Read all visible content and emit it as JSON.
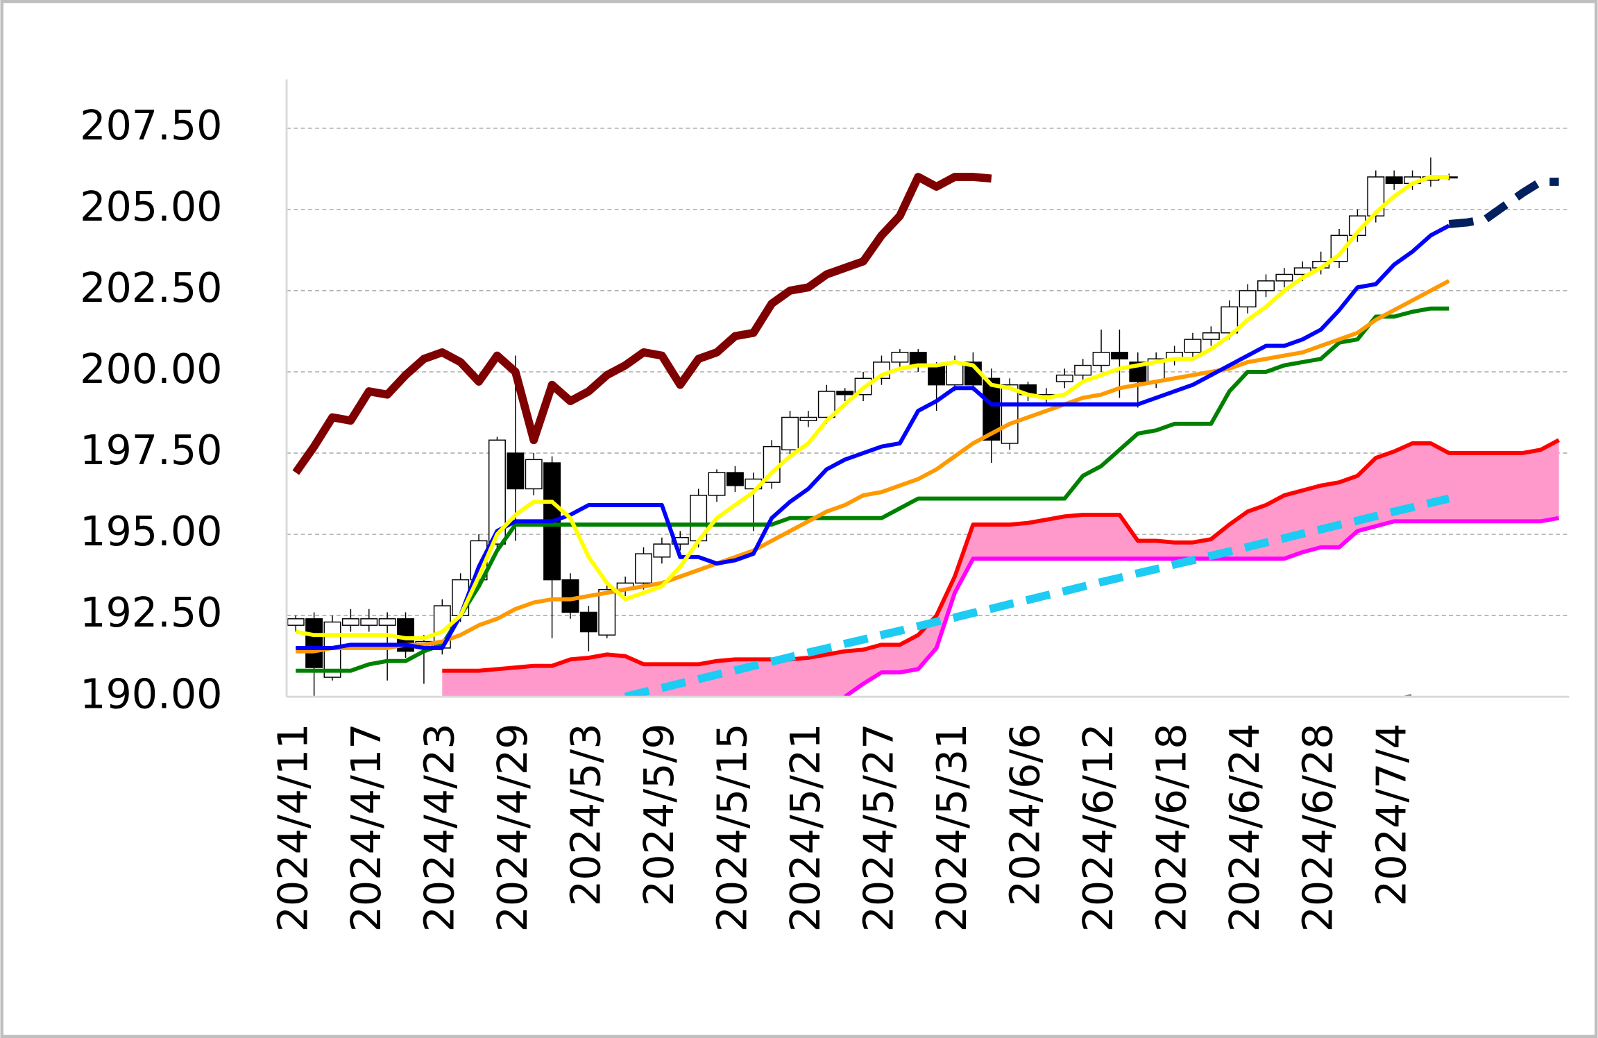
{
  "chart_data": {
    "type": "candlestick",
    "categories": [
      "2024/4/11",
      null,
      null,
      null,
      "2024/4/17",
      null,
      null,
      null,
      "2024/4/23",
      null,
      null,
      null,
      "2024/4/29",
      null,
      null,
      null,
      "2024/5/3",
      null,
      null,
      null,
      "2024/5/9",
      null,
      null,
      null,
      "2024/5/15",
      null,
      null,
      null,
      "2024/5/21",
      null,
      null,
      null,
      "2024/5/27",
      null,
      null,
      null,
      "2024/5/31",
      null,
      null,
      null,
      "2024/6/6",
      null,
      null,
      null,
      "2024/6/12",
      null,
      null,
      null,
      "2024/6/18",
      null,
      null,
      null,
      "2024/6/24",
      null,
      null,
      null,
      "2024/6/28",
      null,
      null,
      null,
      "2024/7/4",
      null,
      null,
      null,
      null,
      null,
      null,
      null,
      null,
      null
    ],
    "open": [
      192.2,
      192.4,
      190.6,
      192.2,
      192.2,
      192.2,
      192.4,
      191.5,
      191.5,
      192.5,
      193.6,
      194.7,
      197.5,
      196.4,
      197.2,
      193.6,
      192.6,
      191.9,
      193.3,
      193.5,
      194.3,
      194.7,
      194.8,
      196.2,
      196.9,
      196.4,
      196.6,
      197.6,
      198.5,
      198.6,
      199.4,
      199.3,
      199.8,
      200.3,
      200.6,
      200.2,
      199.6,
      200.3,
      199.8,
      197.8,
      199.6,
      199.2,
      199.7,
      199.9,
      200.2,
      200.6,
      200.3,
      199.7,
      200.4,
      200.6,
      201.0,
      201.2,
      202.0,
      202.5,
      202.8,
      203.0,
      203.2,
      203.4,
      204.2,
      204.8,
      206.0,
      205.8,
      205.9,
      206.0,
      null,
      null,
      null,
      null,
      null,
      null
    ],
    "high": [
      192.5,
      192.6,
      192.5,
      192.7,
      192.7,
      192.6,
      192.6,
      191.9,
      193.0,
      193.8,
      195.0,
      198.0,
      200.5,
      197.5,
      197.4,
      193.8,
      192.8,
      193.5,
      193.7,
      194.6,
      194.9,
      195.1,
      196.4,
      197.0,
      197.1,
      196.9,
      197.9,
      198.8,
      198.8,
      199.6,
      199.5,
      200.0,
      200.5,
      200.7,
      200.7,
      200.3,
      200.5,
      200.6,
      200.1,
      199.8,
      199.7,
      199.5,
      200.1,
      200.4,
      201.3,
      201.3,
      200.6,
      200.6,
      200.8,
      201.2,
      201.4,
      202.2,
      202.7,
      203.0,
      203.2,
      203.4,
      203.7,
      204.4,
      205.0,
      206.2,
      206.2,
      206.2,
      206.6,
      206.1,
      null,
      null,
      null,
      null,
      null,
      null
    ],
    "low": [
      192.0,
      190.0,
      190.5,
      192.0,
      192.0,
      190.5,
      191.2,
      190.4,
      191.3,
      192.3,
      193.4,
      194.5,
      194.8,
      196.2,
      191.8,
      192.4,
      191.4,
      191.8,
      193.1,
      193.3,
      194.1,
      194.5,
      194.6,
      196.0,
      196.3,
      195.1,
      196.4,
      197.4,
      198.3,
      198.4,
      199.1,
      199.1,
      199.6,
      200.1,
      200.0,
      198.8,
      199.4,
      199.4,
      197.2,
      197.6,
      199.1,
      199.0,
      199.5,
      199.7,
      200.0,
      199.2,
      198.9,
      199.5,
      200.2,
      200.4,
      200.8,
      201.0,
      201.8,
      202.3,
      202.6,
      202.8,
      203.0,
      203.2,
      204.0,
      204.6,
      205.6,
      205.6,
      205.7,
      205.9,
      null,
      null,
      null,
      null,
      null,
      null
    ],
    "close": [
      192.4,
      190.9,
      192.3,
      192.4,
      192.4,
      192.4,
      191.4,
      191.7,
      192.8,
      193.6,
      194.8,
      197.9,
      196.4,
      197.3,
      193.6,
      192.6,
      192.0,
      193.3,
      193.5,
      194.4,
      194.7,
      194.9,
      196.2,
      196.9,
      196.5,
      196.7,
      197.7,
      198.6,
      198.6,
      199.4,
      199.3,
      199.8,
      200.3,
      200.6,
      200.2,
      199.6,
      200.3,
      199.6,
      197.9,
      199.6,
      199.3,
      199.3,
      199.9,
      200.2,
      200.6,
      200.4,
      199.7,
      200.4,
      200.6,
      201.0,
      201.2,
      202.0,
      202.5,
      202.8,
      203.0,
      203.2,
      203.4,
      204.2,
      204.8,
      206.0,
      205.8,
      206.0,
      206.0,
      206.0,
      null,
      null,
      null,
      null,
      null,
      null
    ],
    "up_color": "#ffffff",
    "down_color": "#000000",
    "cloud_color": "#ff99cc",
    "series": [
      {
        "color": "#ff0000",
        "width": 4,
        "values": [
          null,
          null,
          null,
          null,
          null,
          null,
          null,
          null,
          190.8,
          190.8,
          190.8,
          190.85,
          190.9,
          190.95,
          190.95,
          191.15,
          191.2,
          191.3,
          191.25,
          191.0,
          191.0,
          191.0,
          191.0,
          191.1,
          191.15,
          191.15,
          191.15,
          191.15,
          191.2,
          191.3,
          191.4,
          191.45,
          191.6,
          191.6,
          191.9,
          192.5,
          193.7,
          195.3,
          195.3,
          195.3,
          195.35,
          195.45,
          195.55,
          195.6,
          195.6,
          195.6,
          194.8,
          194.8,
          194.75,
          194.75,
          194.85,
          195.3,
          195.7,
          195.9,
          196.2,
          196.35,
          196.5,
          196.6,
          196.8,
          197.35,
          197.55,
          197.8,
          197.8,
          197.5,
          197.5,
          197.5,
          197.5,
          197.5,
          197.6,
          197.9
        ]
      },
      {
        "color": "#ff00ff",
        "width": 4,
        "values": [
          null,
          null,
          null,
          null,
          null,
          null,
          null,
          null,
          null,
          null,
          null,
          null,
          null,
          null,
          null,
          null,
          null,
          null,
          null,
          null,
          null,
          null,
          null,
          null,
          null,
          null,
          null,
          null,
          null,
          null,
          190.0,
          190.4,
          190.75,
          190.75,
          190.85,
          191.5,
          193.2,
          194.25,
          194.25,
          194.25,
          194.25,
          194.25,
          194.25,
          194.25,
          194.25,
          194.25,
          194.25,
          194.25,
          194.25,
          194.25,
          194.25,
          194.25,
          194.25,
          194.25,
          194.25,
          194.45,
          194.6,
          194.6,
          195.1,
          195.25,
          195.4,
          195.4,
          195.4,
          195.4,
          195.4,
          195.4,
          195.4,
          195.4,
          195.4,
          195.5
        ]
      },
      {
        "color": "#1ecbf2",
        "width": 8,
        "dash": true,
        "values": [
          null,
          null,
          null,
          null,
          null,
          null,
          null,
          null,
          null,
          null,
          null,
          null,
          null,
          null,
          null,
          null,
          null,
          null,
          190.0,
          190.14,
          190.27,
          190.41,
          190.54,
          190.68,
          190.81,
          190.95,
          191.08,
          191.22,
          191.36,
          191.49,
          191.63,
          191.76,
          191.9,
          192.03,
          192.17,
          192.31,
          192.44,
          192.58,
          192.71,
          192.85,
          192.98,
          193.12,
          193.25,
          193.39,
          193.53,
          193.66,
          193.8,
          193.93,
          194.07,
          194.2,
          194.34,
          194.47,
          194.61,
          194.75,
          194.88,
          195.02,
          195.15,
          195.29,
          195.42,
          195.56,
          195.7,
          195.83,
          195.97,
          196.1,
          null,
          null,
          null,
          null,
          null,
          null
        ]
      },
      {
        "color": "#808080",
        "width": 6,
        "dash": true,
        "values": [
          null,
          null,
          null,
          null,
          null,
          null,
          null,
          null,
          null,
          null,
          null,
          null,
          null,
          null,
          null,
          null,
          null,
          null,
          null,
          null,
          null,
          null,
          null,
          null,
          null,
          null,
          null,
          null,
          null,
          null,
          null,
          null,
          null,
          null,
          null,
          null,
          null,
          null,
          null,
          null,
          null,
          null,
          null,
          null,
          null,
          null,
          null,
          null,
          null,
          null,
          null,
          null,
          null,
          null,
          null,
          null,
          null,
          null,
          null,
          null,
          189.85,
          190.0,
          null,
          190.2,
          null,
          null,
          null,
          null,
          null,
          null
        ]
      },
      {
        "color": "#008000",
        "width": 4,
        "values": [
          190.8,
          190.8,
          190.8,
          190.8,
          191.0,
          191.1,
          191.1,
          191.4,
          191.6,
          192.5,
          193.4,
          194.5,
          195.3,
          195.3,
          195.3,
          195.3,
          195.3,
          195.3,
          195.3,
          195.3,
          195.3,
          195.3,
          195.3,
          195.3,
          195.3,
          195.3,
          195.3,
          195.5,
          195.5,
          195.5,
          195.5,
          195.5,
          195.5,
          195.8,
          196.1,
          196.1,
          196.1,
          196.1,
          196.1,
          196.1,
          196.1,
          196.1,
          196.1,
          196.8,
          197.1,
          197.6,
          198.1,
          198.2,
          198.4,
          198.4,
          198.4,
          199.4,
          200.0,
          200.0,
          200.2,
          200.3,
          200.4,
          200.9,
          201.0,
          201.7,
          201.7,
          201.85,
          201.95,
          201.95,
          null,
          null,
          null,
          null,
          null,
          null
        ]
      },
      {
        "color": "#ff9900",
        "width": 4,
        "values": [
          191.4,
          191.4,
          191.5,
          191.5,
          191.5,
          191.5,
          191.6,
          191.6,
          191.7,
          191.9,
          192.2,
          192.4,
          192.7,
          192.9,
          193.0,
          193.0,
          193.1,
          193.2,
          193.3,
          193.4,
          193.5,
          193.7,
          193.9,
          194.1,
          194.3,
          194.5,
          194.8,
          195.1,
          195.4,
          195.7,
          195.9,
          196.2,
          196.3,
          196.5,
          196.7,
          197.0,
          197.4,
          197.8,
          198.1,
          198.4,
          198.6,
          198.8,
          199.0,
          199.2,
          199.3,
          199.5,
          199.6,
          199.7,
          199.8,
          199.9,
          200.0,
          200.1,
          200.3,
          200.4,
          200.5,
          200.6,
          200.8,
          201.0,
          201.2,
          201.6,
          201.9,
          202.2,
          202.5,
          202.8,
          null,
          null,
          null,
          null,
          null,
          null
        ]
      },
      {
        "color": "#0000ff",
        "width": 4,
        "values": [
          191.5,
          191.5,
          191.5,
          191.6,
          191.6,
          191.6,
          191.6,
          191.5,
          191.5,
          192.5,
          194.0,
          195.1,
          195.4,
          195.4,
          195.4,
          195.6,
          195.9,
          195.9,
          195.9,
          195.9,
          195.9,
          194.3,
          194.3,
          194.1,
          194.2,
          194.4,
          195.5,
          196.0,
          196.4,
          197.0,
          197.3,
          197.5,
          197.7,
          197.8,
          198.8,
          199.1,
          199.5,
          199.5,
          199.0,
          199.0,
          199.0,
          199.0,
          199.0,
          199.0,
          199.0,
          199.0,
          199.0,
          199.2,
          199.4,
          199.6,
          199.9,
          200.2,
          200.5,
          200.8,
          200.8,
          201.0,
          201.3,
          201.9,
          202.6,
          202.7,
          203.3,
          203.7,
          204.2,
          204.5,
          null,
          null,
          null,
          null,
          null,
          null
        ]
      },
      {
        "color": "#002060",
        "width": 8,
        "dash": true,
        "values": [
          null,
          null,
          null,
          null,
          null,
          null,
          null,
          null,
          null,
          null,
          null,
          null,
          null,
          null,
          null,
          null,
          null,
          null,
          null,
          null,
          null,
          null,
          null,
          null,
          null,
          null,
          null,
          null,
          null,
          null,
          null,
          null,
          null,
          null,
          null,
          null,
          null,
          null,
          null,
          null,
          null,
          null,
          null,
          null,
          null,
          null,
          null,
          null,
          null,
          null,
          null,
          null,
          null,
          null,
          null,
          null,
          null,
          null,
          null,
          null,
          null,
          null,
          null,
          204.55,
          204.6,
          204.7,
          205.1,
          205.5,
          205.85,
          205.85
        ]
      },
      {
        "color": "#ffff00",
        "width": 4,
        "values": [
          192.0,
          191.9,
          191.9,
          191.9,
          191.9,
          191.9,
          191.8,
          191.8,
          192.0,
          192.5,
          193.7,
          195.0,
          195.6,
          196.0,
          196.0,
          195.5,
          194.3,
          193.5,
          193.0,
          193.2,
          193.4,
          194.0,
          194.8,
          195.5,
          195.9,
          196.3,
          196.9,
          197.4,
          197.8,
          198.5,
          199.0,
          199.5,
          199.9,
          200.1,
          200.2,
          200.2,
          200.3,
          200.2,
          199.6,
          199.5,
          199.3,
          199.2,
          199.3,
          199.7,
          199.9,
          200.1,
          200.2,
          200.3,
          200.4,
          200.4,
          200.7,
          201.1,
          201.6,
          202.0,
          202.5,
          202.9,
          203.2,
          203.6,
          204.3,
          204.9,
          205.4,
          205.8,
          206.0,
          206.0,
          null,
          null,
          null,
          null,
          null,
          null
        ]
      },
      {
        "color": "#7f0000",
        "width": 8,
        "values": [
          196.9,
          197.7,
          198.6,
          198.5,
          199.4,
          199.3,
          199.9,
          200.4,
          200.6,
          200.3,
          199.7,
          200.5,
          200.0,
          197.9,
          199.6,
          199.1,
          199.4,
          199.9,
          200.2,
          200.6,
          200.5,
          199.6,
          200.4,
          200.6,
          201.1,
          201.2,
          202.1,
          202.5,
          202.6,
          203.0,
          203.2,
          203.4,
          204.2,
          204.8,
          206.0,
          205.7,
          206.0,
          206.0,
          205.95,
          null,
          null,
          null,
          null,
          null,
          null,
          null,
          null,
          null,
          null,
          null,
          null,
          null,
          null,
          null,
          null,
          null,
          null,
          null,
          null,
          null,
          null,
          null,
          null,
          null,
          null,
          null,
          null,
          null,
          null,
          null
        ]
      }
    ],
    "ylim": [
      190,
      209
    ],
    "yticks": [
      {
        "value": 190,
        "label": "190.00"
      },
      {
        "value": 192.5,
        "label": "192.50"
      },
      {
        "value": 195,
        "label": "195.00"
      },
      {
        "value": 197.5,
        "label": "197.50"
      },
      {
        "value": 200,
        "label": "200.00"
      },
      {
        "value": 202.5,
        "label": "202.50"
      },
      {
        "value": 205,
        "label": "205.00"
      },
      {
        "value": 207.5,
        "label": "207.50"
      }
    ],
    "grid": true
  }
}
